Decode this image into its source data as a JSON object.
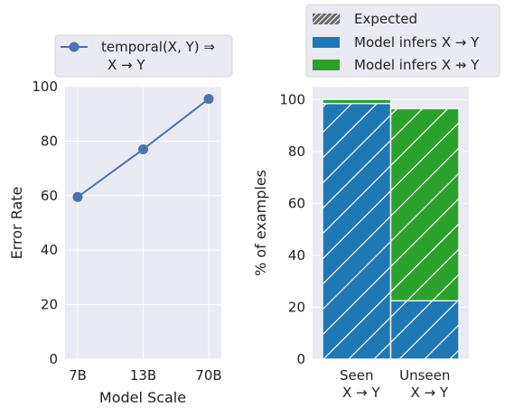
{
  "chart_data": [
    {
      "type": "line",
      "xlabel": "Model Scale",
      "ylabel": "Error Rate",
      "categories": [
        "7B",
        "13B",
        "70B"
      ],
      "ylim": [
        0,
        100
      ],
      "yticks": [
        0,
        20,
        40,
        60,
        80,
        100
      ],
      "grid": true,
      "legend_position": "top",
      "series": [
        {
          "name_line1": "temporal(X, Y) ⇒",
          "name_line2": "X → Y",
          "color": "#4c72b0",
          "values": [
            59.5,
            77,
            95.5
          ]
        }
      ]
    },
    {
      "type": "bar",
      "stacked": true,
      "ylabel": "% of examples",
      "categories": [
        {
          "line1": "Seen",
          "line2": "X → Y"
        },
        {
          "line1": "Unseen",
          "line2": "X → Y"
        }
      ],
      "ylim": [
        0,
        105
      ],
      "yticks": [
        0,
        20,
        40,
        60,
        80,
        100
      ],
      "grid": true,
      "legend_position": "top",
      "series": [
        {
          "name": "Model infers X → Y",
          "color": "#1f77b4",
          "values": [
            98.5,
            22.5
          ]
        },
        {
          "name": "Model infers X ⇸ Y",
          "color": "#2ca02c",
          "values": [
            1.5,
            74
          ]
        }
      ],
      "expected": {
        "name": "Expected",
        "values": [
          98.5,
          96.5
        ],
        "pattern": "hatch"
      }
    }
  ]
}
